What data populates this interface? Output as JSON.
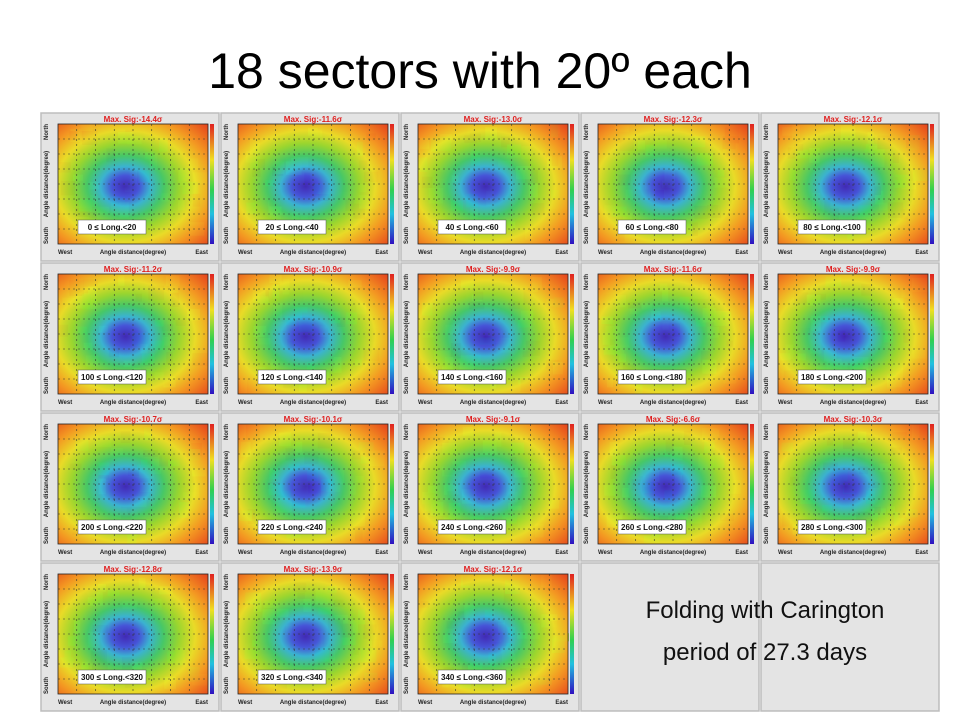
{
  "header": {
    "title": "18 sectors with 20º each"
  },
  "axes": {
    "west": "West",
    "east": "East",
    "south": "South",
    "north": "North",
    "label": "Angle distance(degree)"
  },
  "panels": [
    {
      "max_sig": "Max. Sig:-14.4σ",
      "range": "0 ≤ Long.<20"
    },
    {
      "max_sig": "Max. Sig:-11.6σ",
      "range": "20 ≤ Long.<40"
    },
    {
      "max_sig": "Max. Sig:-13.0σ",
      "range": "40 ≤ Long.<60"
    },
    {
      "max_sig": "Max. Sig:-12.3σ",
      "range": "60 ≤ Long.<80"
    },
    {
      "max_sig": "Max. Sig:-12.1σ",
      "range": "80 ≤ Long.<100"
    },
    {
      "max_sig": "Max. Sig:-11.2σ",
      "range": "100 ≤ Long.<120"
    },
    {
      "max_sig": "Max. Sig:-10.9σ",
      "range": "120 ≤ Long.<140"
    },
    {
      "max_sig": "Max. Sig:-9.9σ",
      "range": "140 ≤ Long.<160"
    },
    {
      "max_sig": "Max. Sig:-11.6σ",
      "range": "160 ≤ Long.<180"
    },
    {
      "max_sig": "Max. Sig:-9.9σ",
      "range": "180 ≤ Long.<200"
    },
    {
      "max_sig": "Max. Sig:-10.7σ",
      "range": "200 ≤ Long.<220"
    },
    {
      "max_sig": "Max. Sig:-10.1σ",
      "range": "220 ≤ Long.<240"
    },
    {
      "max_sig": "Max. Sig:-9.1σ",
      "range": "240 ≤ Long.<260"
    },
    {
      "max_sig": "Max. Sig:-6.6σ",
      "range": "260 ≤ Long.<280"
    },
    {
      "max_sig": "Max. Sig:-10.3σ",
      "range": "280 ≤ Long.<300"
    },
    {
      "max_sig": "Max. Sig:-12.8σ",
      "range": "300 ≤ Long.<320"
    },
    {
      "max_sig": "Max. Sig:-13.9σ",
      "range": "320 ≤ Long.<340"
    },
    {
      "max_sig": "Max. Sig:-12.1σ",
      "range": "340 ≤ Long.<360"
    }
  ],
  "note": {
    "lines": [
      "Folding with Carington",
      "period of 27.3 days"
    ]
  }
}
